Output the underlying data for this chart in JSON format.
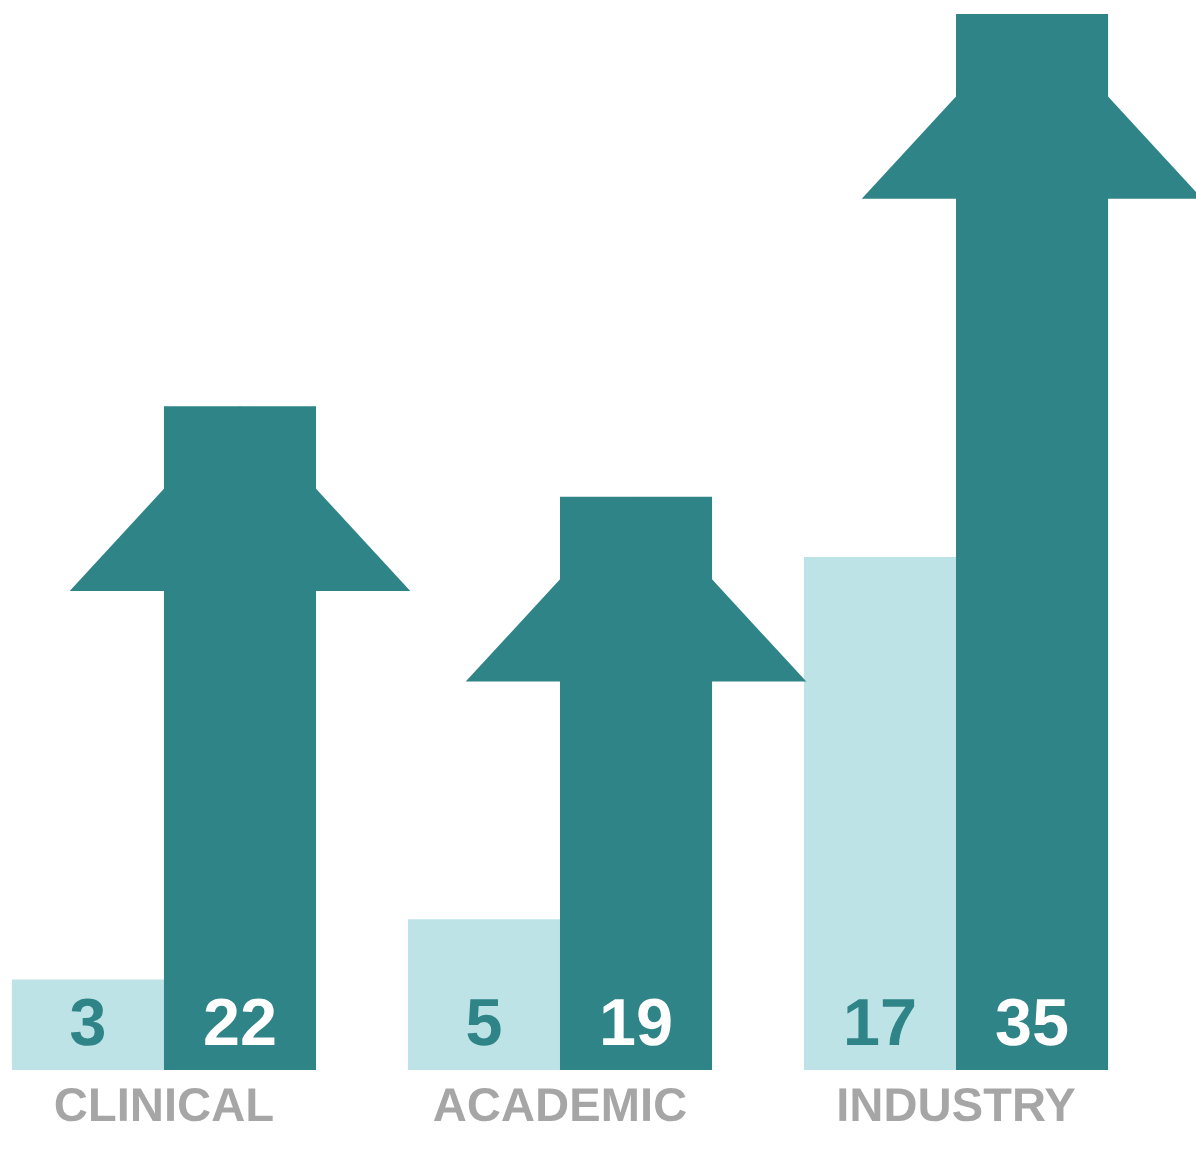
{
  "chart_data": {
    "type": "bar",
    "categories": [
      "CLINICAL",
      "ACADEMIC",
      "INDUSTRY"
    ],
    "series": [
      {
        "color": "#bde3e6",
        "values": [
          3,
          5,
          17
        ]
      },
      {
        "color": "#2f8487",
        "values": [
          22,
          19,
          35
        ]
      }
    ],
    "data_labels": true,
    "tick_labels": "x",
    "grid": false,
    "legend": false
  }
}
